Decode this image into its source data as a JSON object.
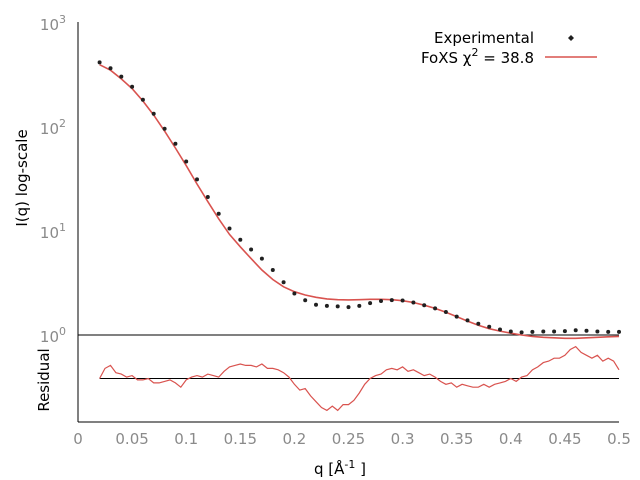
{
  "chart_data": [
    {
      "type": "scatter",
      "panel": "main",
      "yscale": "log",
      "xlim": [
        0,
        0.5
      ],
      "ylim": [
        1,
        1000
      ],
      "ylabel": "I(q) log-scale",
      "y_ticks": [
        {
          "base": "10",
          "exp": "0"
        },
        {
          "base": "10",
          "exp": "1"
        },
        {
          "base": "10",
          "exp": "2"
        },
        {
          "base": "10",
          "exp": "3"
        }
      ],
      "legend": {
        "placement": "top-right",
        "experimental": "Experimental",
        "fit_prefix": "FoXS χ",
        "fit_sup": "2",
        "fit_suffix": " = 38.8"
      },
      "series": [
        {
          "name": "Experimental",
          "style": "points",
          "color": "#202020",
          "x": [
            0.02,
            0.03,
            0.04,
            0.05,
            0.06,
            0.07,
            0.08,
            0.09,
            0.1,
            0.11,
            0.12,
            0.13,
            0.14,
            0.15,
            0.16,
            0.17,
            0.18,
            0.19,
            0.2,
            0.21,
            0.22,
            0.23,
            0.24,
            0.25,
            0.26,
            0.27,
            0.28,
            0.29,
            0.3,
            0.31,
            0.32,
            0.33,
            0.34,
            0.35,
            0.36,
            0.37,
            0.38,
            0.39,
            0.4,
            0.41,
            0.42,
            0.43,
            0.44,
            0.45,
            0.46,
            0.47,
            0.48,
            0.49,
            0.5
          ],
          "y": [
            410,
            360,
            300,
            240,
            180,
            132,
            95,
            68,
            46,
            31,
            21,
            14.5,
            10.5,
            8.2,
            6.6,
            5.4,
            4.2,
            3.2,
            2.5,
            2.15,
            1.95,
            1.9,
            1.88,
            1.85,
            1.9,
            2.02,
            2.12,
            2.16,
            2.14,
            2.05,
            1.93,
            1.8,
            1.66,
            1.5,
            1.38,
            1.28,
            1.2,
            1.13,
            1.08,
            1.06,
            1.07,
            1.08,
            1.08,
            1.09,
            1.11,
            1.1,
            1.08,
            1.07,
            1.07
          ]
        },
        {
          "name": "FoXS χ2 = 38.8",
          "style": "line",
          "color": "#d9534f",
          "x": [
            0.02,
            0.03,
            0.04,
            0.05,
            0.06,
            0.07,
            0.08,
            0.09,
            0.1,
            0.11,
            0.12,
            0.13,
            0.14,
            0.15,
            0.16,
            0.17,
            0.18,
            0.19,
            0.2,
            0.21,
            0.22,
            0.23,
            0.24,
            0.25,
            0.26,
            0.27,
            0.28,
            0.29,
            0.3,
            0.31,
            0.32,
            0.33,
            0.34,
            0.35,
            0.36,
            0.37,
            0.38,
            0.39,
            0.4,
            0.41,
            0.42,
            0.43,
            0.44,
            0.45,
            0.46,
            0.47,
            0.48,
            0.49,
            0.5
          ],
          "y": [
            390,
            345,
            285,
            230,
            175,
            128,
            90,
            62,
            42,
            28,
            19,
            13,
            9.2,
            7.0,
            5.4,
            4.2,
            3.4,
            2.9,
            2.6,
            2.42,
            2.3,
            2.22,
            2.18,
            2.17,
            2.18,
            2.2,
            2.2,
            2.18,
            2.13,
            2.05,
            1.93,
            1.8,
            1.65,
            1.5,
            1.36,
            1.24,
            1.15,
            1.09,
            1.04,
            1.0,
            0.97,
            0.95,
            0.94,
            0.93,
            0.93,
            0.94,
            0.95,
            0.96,
            0.97
          ]
        }
      ]
    },
    {
      "type": "line",
      "panel": "residual",
      "xlabel_prefix": "q [Å",
      "xlabel_sup": "-1",
      "xlabel_suffix": " ]",
      "ylabel": "Residual",
      "xlim": [
        0,
        0.5
      ],
      "ylim": [
        -1.5,
        1.5
      ],
      "x_ticks": [
        "0",
        "0.05",
        "0.1",
        "0.15",
        "0.2",
        "0.25",
        "0.3",
        "0.35",
        "0.4",
        "0.45",
        "0.5"
      ],
      "baseline": 0,
      "series": [
        {
          "name": "Residual",
          "color": "#d9534f",
          "x": [
            0.02,
            0.025,
            0.03,
            0.035,
            0.04,
            0.045,
            0.05,
            0.055,
            0.06,
            0.065,
            0.07,
            0.075,
            0.08,
            0.085,
            0.09,
            0.095,
            0.1,
            0.105,
            0.11,
            0.115,
            0.12,
            0.125,
            0.13,
            0.135,
            0.14,
            0.145,
            0.15,
            0.155,
            0.16,
            0.165,
            0.17,
            0.175,
            0.18,
            0.185,
            0.19,
            0.195,
            0.2,
            0.205,
            0.21,
            0.215,
            0.22,
            0.225,
            0.23,
            0.235,
            0.24,
            0.245,
            0.25,
            0.255,
            0.26,
            0.265,
            0.27,
            0.275,
            0.28,
            0.285,
            0.29,
            0.295,
            0.3,
            0.305,
            0.31,
            0.315,
            0.32,
            0.325,
            0.33,
            0.335,
            0.34,
            0.345,
            0.35,
            0.355,
            0.36,
            0.365,
            0.37,
            0.375,
            0.38,
            0.385,
            0.39,
            0.395,
            0.4,
            0.405,
            0.41,
            0.415,
            0.42,
            0.425,
            0.43,
            0.435,
            0.44,
            0.445,
            0.45,
            0.455,
            0.46,
            0.465,
            0.47,
            0.475,
            0.48,
            0.485,
            0.49,
            0.495,
            0.5
          ],
          "y": [
            0.0,
            0.35,
            0.45,
            0.2,
            0.15,
            0.05,
            0.1,
            -0.05,
            -0.05,
            0.0,
            -0.15,
            -0.15,
            -0.1,
            -0.05,
            -0.15,
            -0.3,
            -0.05,
            0.05,
            0.1,
            0.05,
            0.15,
            0.1,
            0.05,
            0.25,
            0.4,
            0.45,
            0.5,
            0.45,
            0.45,
            0.4,
            0.5,
            0.35,
            0.35,
            0.3,
            0.2,
            0.05,
            -0.2,
            -0.4,
            -0.35,
            -0.6,
            -0.8,
            -1.0,
            -1.1,
            -0.95,
            -1.1,
            -0.9,
            -0.9,
            -0.75,
            -0.5,
            -0.2,
            0.0,
            0.1,
            0.15,
            0.3,
            0.35,
            0.3,
            0.4,
            0.25,
            0.3,
            0.2,
            0.1,
            0.15,
            0.05,
            -0.1,
            -0.2,
            -0.15,
            -0.3,
            -0.2,
            -0.25,
            -0.3,
            -0.3,
            -0.2,
            -0.3,
            -0.2,
            -0.15,
            -0.1,
            0.0,
            -0.1,
            0.05,
            0.1,
            0.3,
            0.4,
            0.55,
            0.6,
            0.7,
            0.7,
            0.8,
            1.0,
            1.1,
            0.9,
            0.8,
            0.7,
            0.8,
            0.6,
            0.7,
            0.6,
            0.3
          ]
        }
      ]
    }
  ]
}
